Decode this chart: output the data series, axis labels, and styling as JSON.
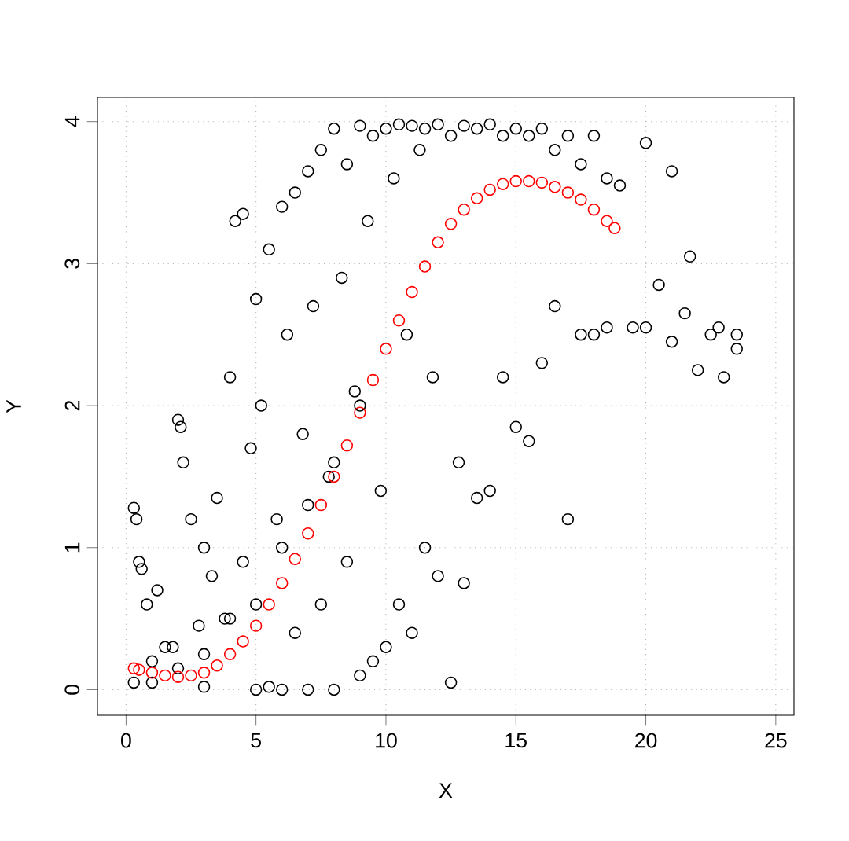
{
  "chart_data": {
    "type": "scatter",
    "xlabel": "X",
    "ylabel": "Y",
    "xlim": [
      -1.1,
      25.7
    ],
    "ylim": [
      -0.18,
      4.17
    ],
    "xticks": [
      0,
      5,
      10,
      15,
      20,
      25
    ],
    "yticks": [
      0,
      1,
      2,
      3,
      4
    ],
    "grid": true,
    "marker": "circle",
    "series": [
      {
        "color": "#000000",
        "x": [
          0.3,
          0.4,
          0.5,
          0.6,
          0.8,
          1.0,
          1.2,
          1.5,
          1.8,
          2.0,
          2.1,
          2.2,
          2.5,
          2.8,
          3.0,
          3.0,
          3.3,
          3.5,
          3.8,
          4.0,
          4.2,
          4.5,
          4.5,
          4.8,
          5.0,
          5.0,
          5.2,
          5.5,
          5.5,
          5.8,
          6.0,
          6.0,
          6.2,
          6.5,
          6.5,
          6.8,
          7.0,
          7.0,
          7.2,
          7.5,
          7.5,
          7.8,
          8.0,
          8.0,
          8.3,
          8.5,
          8.5,
          8.8,
          9.0,
          9.0,
          9.3,
          9.5,
          9.5,
          9.8,
          10.0,
          10.0,
          10.3,
          10.5,
          10.5,
          10.8,
          11.0,
          11.0,
          11.3,
          11.5,
          11.5,
          11.8,
          12.0,
          12.0,
          12.5,
          12.5,
          12.8,
          13.0,
          13.0,
          13.5,
          13.5,
          14.0,
          14.0,
          14.5,
          14.5,
          15.0,
          15.0,
          15.5,
          15.5,
          16.0,
          16.0,
          16.5,
          16.5,
          17.0,
          17.0,
          17.5,
          17.5,
          18.0,
          18.0,
          18.5,
          18.5,
          19.0,
          19.5,
          20.0,
          20.0,
          20.5,
          21.0,
          21.0,
          21.5,
          21.7,
          22.0,
          22.5,
          22.8,
          23.0,
          23.5,
          23.5,
          0.3,
          1.0,
          2.0,
          3.0,
          4.0,
          5.0,
          6.0,
          7.0,
          8.0,
          9.0
        ],
        "values": [
          1.28,
          1.2,
          0.9,
          0.85,
          0.6,
          0.05,
          0.7,
          0.3,
          0.3,
          1.9,
          1.85,
          1.6,
          1.2,
          0.45,
          1.0,
          0.02,
          0.8,
          1.35,
          0.5,
          2.2,
          3.3,
          3.35,
          0.9,
          1.7,
          2.75,
          0.0,
          2.0,
          3.1,
          0.02,
          1.2,
          3.4,
          0.0,
          2.5,
          3.5,
          0.4,
          1.8,
          3.65,
          0.0,
          2.7,
          3.8,
          0.6,
          1.5,
          3.95,
          0.0,
          2.9,
          3.7,
          0.9,
          2.1,
          3.97,
          0.1,
          3.3,
          3.9,
          0.2,
          1.4,
          3.95,
          0.3,
          3.6,
          3.98,
          0.6,
          2.5,
          3.97,
          0.4,
          3.8,
          3.95,
          1.0,
          2.2,
          3.98,
          0.8,
          3.9,
          0.05,
          1.6,
          3.97,
          0.75,
          3.95,
          1.35,
          3.98,
          1.4,
          3.9,
          2.2,
          3.95,
          1.85,
          3.9,
          1.75,
          3.95,
          2.3,
          3.8,
          2.7,
          3.9,
          1.2,
          3.7,
          2.5,
          3.9,
          2.5,
          3.6,
          2.55,
          3.55,
          2.55,
          3.85,
          2.55,
          2.85,
          3.65,
          2.45,
          2.65,
          3.05,
          2.25,
          2.5,
          2.55,
          2.2,
          2.5,
          2.4,
          0.05,
          0.2,
          0.15,
          0.25,
          0.5,
          0.6,
          1.0,
          1.3,
          1.6,
          2.0
        ]
      },
      {
        "color": "#ff0000",
        "x": [
          0.3,
          0.5,
          1.0,
          1.5,
          2.0,
          2.5,
          3.0,
          3.5,
          4.0,
          4.5,
          5.0,
          5.5,
          6.0,
          6.5,
          7.0,
          7.5,
          8.0,
          8.5,
          9.0,
          9.5,
          10.0,
          10.5,
          11.0,
          11.5,
          12.0,
          12.5,
          13.0,
          13.5,
          14.0,
          14.5,
          15.0,
          15.5,
          16.0,
          16.5,
          17.0,
          17.5,
          18.0,
          18.5,
          18.8
        ],
        "values": [
          0.15,
          0.14,
          0.12,
          0.1,
          0.09,
          0.1,
          0.12,
          0.17,
          0.25,
          0.34,
          0.45,
          0.6,
          0.75,
          0.92,
          1.1,
          1.3,
          1.5,
          1.72,
          1.95,
          2.18,
          2.4,
          2.6,
          2.8,
          2.98,
          3.15,
          3.28,
          3.38,
          3.46,
          3.52,
          3.56,
          3.58,
          3.58,
          3.57,
          3.54,
          3.5,
          3.45,
          3.38,
          3.3,
          3.25
        ]
      }
    ]
  }
}
